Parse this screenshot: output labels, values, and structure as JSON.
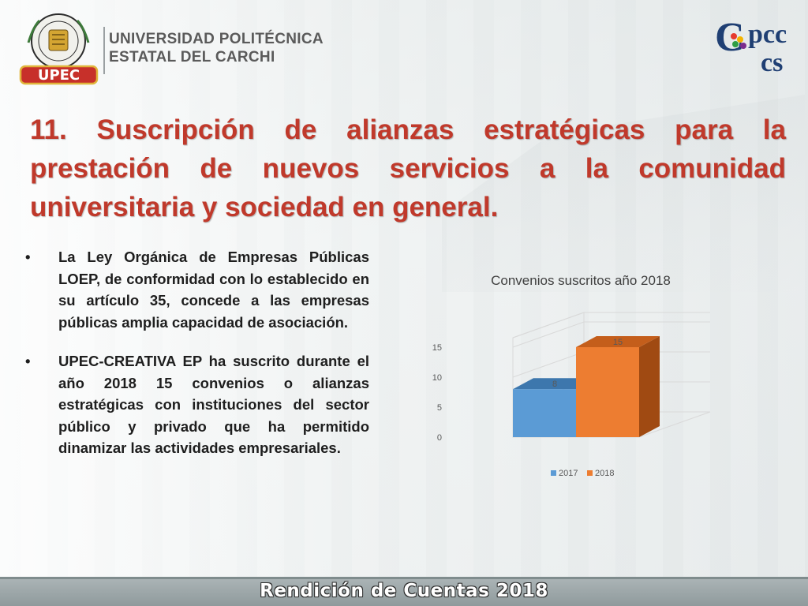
{
  "header": {
    "university_line1": "UNIVERSIDAD POLITÉCNICA",
    "university_line2": "ESTATAL DEL CARCHI",
    "seal_text": "UNIVERSIDAD POLITÉCNICA ESTATAL DEL CARCHI",
    "seal_badge": "UPEC",
    "logo_right": "Cpccs"
  },
  "slide": {
    "title": "11. Suscripción de alianzas estratégicas para la prestación de nuevos servicios a la comunidad universitaria y sociedad en general.",
    "bullet_symbol": "•",
    "bullets": [
      "La Ley Orgánica de Empresas Públicas LOEP, de conformidad con lo establecido en su artículo 35, concede a las empresas públicas amplia capacidad de asociación.",
      "UPEC-CREATIVA EP ha suscrito durante el año 2018 15 convenios o alianzas estratégicas con instituciones del sector público y privado que ha permitido dinamizar las actividades empresariales."
    ]
  },
  "footer": {
    "text": "Rendición de Cuentas 2018"
  },
  "colors": {
    "title": "#c0392b",
    "series_2017": "#5b9bd5",
    "series_2018": "#ed7d31"
  },
  "chart_data": {
    "type": "bar",
    "title": "Convenios suscritos año 2018",
    "style": "3d-clustered-column",
    "categories": [
      ""
    ],
    "series": [
      {
        "name": "2017",
        "values": [
          8
        ]
      },
      {
        "name": "2018",
        "values": [
          15
        ]
      }
    ],
    "yticks": [
      0,
      5,
      10,
      15
    ],
    "ylim": [
      0,
      15
    ],
    "xlabel": "",
    "ylabel": "",
    "legend": "bottom",
    "grid": true
  }
}
